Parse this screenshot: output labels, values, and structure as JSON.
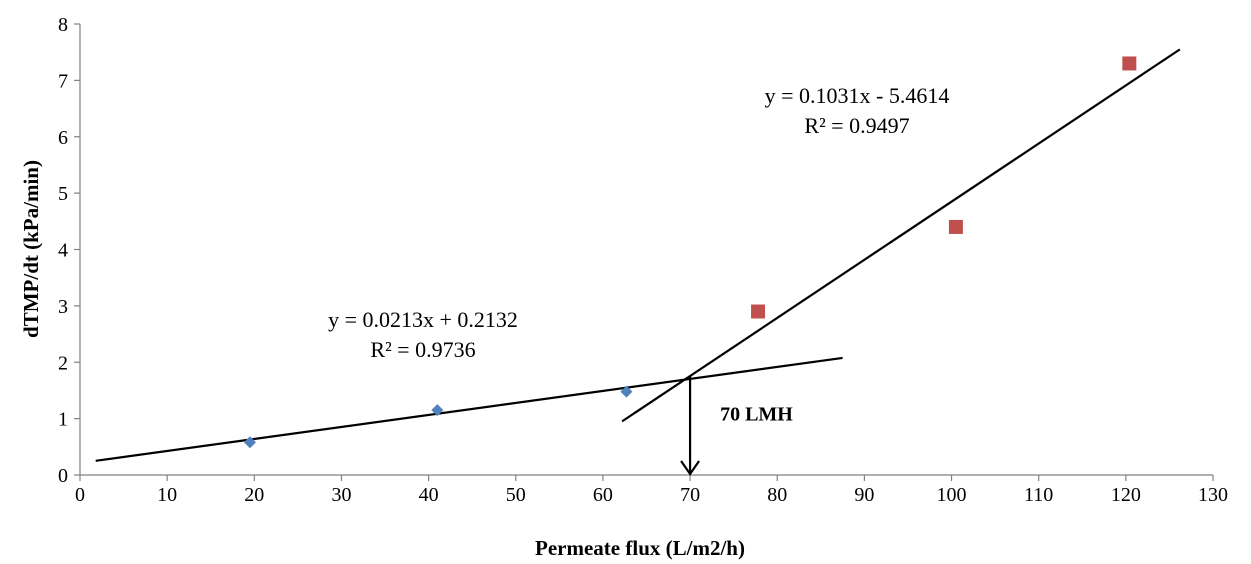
{
  "chart_data": {
    "type": "scatter",
    "xlabel": "Permeate flux (L/m2/h)",
    "ylabel": "dTMP/dt (kPa/min)",
    "xlim": [
      0,
      130
    ],
    "ylim": [
      0,
      8
    ],
    "x_ticks": [
      "0",
      "10",
      "20",
      "30",
      "40",
      "50",
      "60",
      "70",
      "80",
      "90",
      "100",
      "110",
      "120",
      "130"
    ],
    "y_ticks": [
      "0",
      "1",
      "2",
      "3",
      "4",
      "5",
      "6",
      "7",
      "8"
    ],
    "grid": false,
    "series": [
      {
        "marker": "diamond",
        "color": "#4F81BD",
        "points": [
          [
            19.5,
            0.58
          ],
          [
            41,
            1.15
          ],
          [
            62.7,
            1.48
          ]
        ]
      },
      {
        "marker": "square",
        "color": "#C0504D",
        "points": [
          [
            77.8,
            2.9
          ],
          [
            100.5,
            4.4
          ],
          [
            120.4,
            7.3
          ]
        ]
      }
    ],
    "trendlines": [
      {
        "slope": 0.0213,
        "intercept": 0.2132,
        "x_range": [
          1.8,
          87.5
        ],
        "equation": "y = 0.0213x + 0.2132",
        "r2": "R² = 0.9736"
      },
      {
        "slope": 0.1031,
        "intercept": -5.4614,
        "x_range": [
          62.2,
          126.2
        ],
        "equation": "y = 0.1031x - 5.4614",
        "r2": "R² = 0.9497"
      }
    ],
    "annotations": [
      {
        "text": "70 LMH",
        "x": 70,
        "arrow_from_y": 1.75,
        "arrow_to_y": 0
      }
    ]
  }
}
